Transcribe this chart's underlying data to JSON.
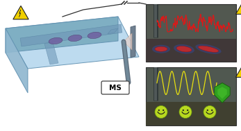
{
  "fig_width": 3.47,
  "fig_height": 1.89,
  "dpi": 100,
  "bg_color": "#ffffff",
  "chip_top_color": "#b8d8ee",
  "chip_left_color": "#90b8d0",
  "chip_front_color": "#7aacc0",
  "channel_color": "#80aac8",
  "droplet_color": "#7060a0",
  "droplet_edge": "#504070",
  "warning_yellow": "#f0d000",
  "warning_dark": "#202020",
  "panel_bg_top": "#505850",
  "panel_bg_bot": "#484840",
  "wire_color": "#303030",
  "needle_color": "#506070",
  "ms_bg": "#ffffff",
  "ms_text": "MS",
  "spray_color": "#e8d0c8",
  "ms_plate_color": "#708090",
  "rt_panel": [
    210,
    100,
    130,
    83
  ],
  "rb_panel": [
    210,
    8,
    130,
    84
  ],
  "sig_red": "#dd1818",
  "sig_yellow": "#e8e010",
  "smiley_color": "#b8d820",
  "shield_color": "#30a020"
}
